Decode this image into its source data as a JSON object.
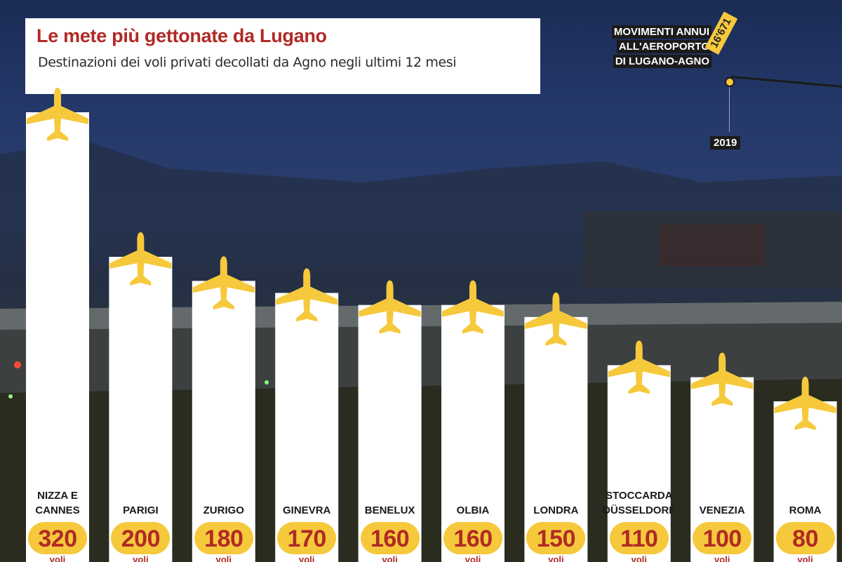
{
  "title": "Le mete più gettonate da Lugano",
  "subtitle": "Destinazioni dei voli privati decollati da Agno negli ultimi 12 mesi",
  "side_panel": {
    "lines": [
      "MOVIMENTI ANNUI",
      "ALL'AEROPORTO",
      "DI LUGANO-AGNO"
    ],
    "movements_value": "16'671",
    "year": "2019"
  },
  "unit": "voli",
  "colors": {
    "accent": "#f6c93c",
    "title": "#b02a25",
    "bar": "#ffffff"
  },
  "chart_data": {
    "type": "bar",
    "title": "Le mete più gettonate da Lugano",
    "subtitle": "Destinazioni dei voli privati decollati da Agno negli ultimi 12 mesi",
    "categories": [
      [
        "NIZZA E",
        "CANNES"
      ],
      [
        "PARIGI"
      ],
      [
        "ZURIGO"
      ],
      [
        "GINEVRA"
      ],
      [
        "BENELUX"
      ],
      [
        "OLBIA"
      ],
      [
        "LONDRA"
      ],
      [
        "STOCCARDA",
        "DÜSSELDORF"
      ],
      [
        "VENEZIA"
      ],
      [
        "ROMA"
      ]
    ],
    "values": [
      320,
      200,
      180,
      170,
      160,
      160,
      150,
      110,
      100,
      80
    ],
    "value_labels": [
      "320",
      "200",
      "180",
      "170",
      "160",
      "160",
      "150",
      "110",
      "100",
      "80"
    ],
    "ylim": [
      0,
      340
    ],
    "grid": false,
    "icon": "airplane-icon"
  }
}
